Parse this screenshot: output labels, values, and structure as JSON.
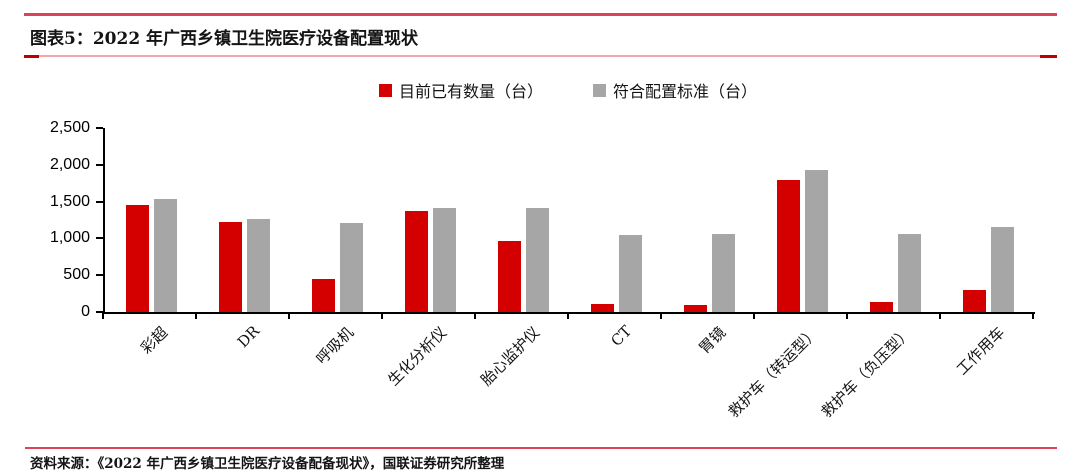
{
  "header": {
    "title": "图表5：2022 年广西乡镇卫生院医疗设备配置现状"
  },
  "footer": {
    "source": "资料来源：《2022 年广西乡镇卫生院医疗设备配备现状》，国联证券研究所整理"
  },
  "colors": {
    "series_current": "#D40000",
    "series_standard": "#A6A6A6",
    "accent_line": "#DB4457",
    "underline_light": "#F2A6B0",
    "underline_dark": "#C00000",
    "axis": "#000000"
  },
  "chart_data": {
    "type": "bar",
    "title": "2022 年广西乡镇卫生院医疗设备配置现状",
    "categories": [
      "彩超",
      "DR",
      "呼吸机",
      "生化分析仪",
      "胎心监护仪",
      "CT",
      "胃镜",
      "救护车（转运型）",
      "救护车（负压型）",
      "工作用车"
    ],
    "series": [
      {
        "name": "目前已有数量（台）",
        "color": "#D40000",
        "values": [
          1450,
          1220,
          450,
          1370,
          970,
          110,
          100,
          1800,
          140,
          300
        ]
      },
      {
        "name": "符合配置标准（台）",
        "color": "#A6A6A6",
        "values": [
          1540,
          1270,
          1210,
          1420,
          1410,
          1050,
          1060,
          1930,
          1060,
          1150
        ]
      }
    ],
    "xlabel": "",
    "ylabel": "",
    "ylim": [
      0,
      2500
    ],
    "yticks": [
      0,
      500,
      1000,
      1500,
      2000,
      2500
    ],
    "ytick_labels": [
      "0",
      "500",
      "1,000",
      "1,500",
      "2,000",
      "2,500"
    ],
    "grid": false,
    "legend_position": "top",
    "xtick_rotation_deg": 45
  }
}
